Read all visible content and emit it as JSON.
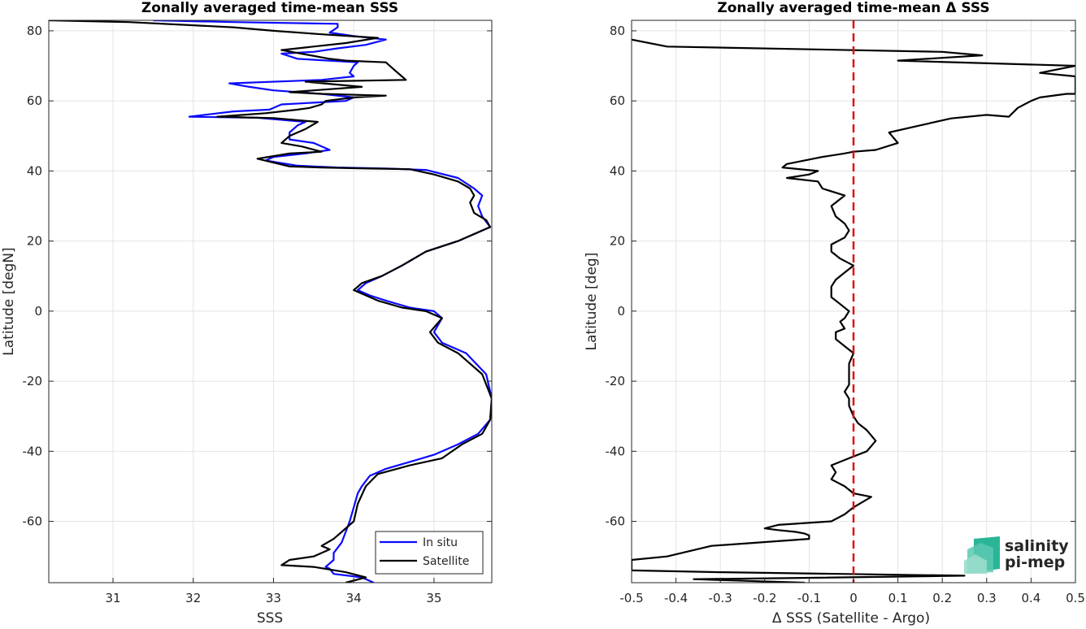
{
  "charts": [
    {
      "id": "left",
      "title": "Zonally averaged time-mean SSS",
      "xlabel": "SSS",
      "ylabel": "Latitude [degN]",
      "xticks": [
        31,
        32,
        33,
        34,
        35
      ],
      "xticklabels": [
        "31",
        "32",
        "33",
        "34",
        "35"
      ],
      "yticks": [
        -60,
        -40,
        -20,
        0,
        20,
        40,
        60,
        80
      ],
      "yticklabels": [
        "-60",
        "-40",
        "-20",
        "0",
        "20",
        "40",
        "60",
        "80"
      ],
      "legend": [
        "In situ",
        "Satellite"
      ]
    },
    {
      "id": "right",
      "title": "Zonally averaged time-mean Δ SSS",
      "xlabel": "Δ SSS (Satellite - Argo)",
      "ylabel": "Latitude [deg]",
      "xticks": [
        -0.5,
        -0.4,
        -0.3,
        -0.2,
        -0.1,
        0,
        0.1,
        0.2,
        0.3,
        0.4,
        0.5
      ],
      "xticklabels": [
        "-0.5",
        "-0.4",
        "-0.3",
        "-0.2",
        "-0.1",
        "0",
        "0.1",
        "0.2",
        "0.3",
        "0.4",
        "0.5"
      ],
      "yticks": [
        -60,
        -40,
        -20,
        0,
        20,
        40,
        60,
        80
      ],
      "yticklabels": [
        "-60",
        "-40",
        "-20",
        "0",
        "20",
        "40",
        "60",
        "80"
      ]
    }
  ],
  "logo": {
    "line1": "salinity",
    "line2": "pi-mep",
    "color": "#1aa68c"
  },
  "colors": {
    "insitu": "#0a0aff",
    "satellite": "#000000",
    "zero_line": "#dd1111"
  },
  "chart_data": [
    {
      "type": "line",
      "title": "Zonally averaged time-mean SSS",
      "xlabel": "SSS",
      "ylabel": "Latitude [degN]",
      "xlim": [
        30.2,
        35.72
      ],
      "ylim": [
        -77.5,
        83
      ],
      "grid": true,
      "legend_position": "bottom-right",
      "series": [
        {
          "name": "In situ",
          "color": "#0a0aff",
          "points": [
            [
              34.25,
              -77.5
            ],
            [
              34.1,
              -76
            ],
            [
              33.75,
              -75
            ],
            [
              33.7,
              -73.5
            ],
            [
              33.65,
              -73
            ],
            [
              33.75,
              -71
            ],
            [
              33.75,
              -69
            ],
            [
              33.85,
              -66
            ],
            [
              33.9,
              -63
            ],
            [
              33.95,
              -60
            ],
            [
              34.0,
              -56
            ],
            [
              34.05,
              -52
            ],
            [
              34.1,
              -50
            ],
            [
              34.2,
              -47
            ],
            [
              34.4,
              -45
            ],
            [
              34.7,
              -43
            ],
            [
              35.0,
              -41
            ],
            [
              35.3,
              -38
            ],
            [
              35.55,
              -35
            ],
            [
              35.7,
              -31
            ],
            [
              35.72,
              -25
            ],
            [
              35.65,
              -18
            ],
            [
              35.4,
              -12
            ],
            [
              35.1,
              -9
            ],
            [
              35.0,
              -6
            ],
            [
              35.1,
              -2
            ],
            [
              35.0,
              0
            ],
            [
              34.7,
              1
            ],
            [
              34.4,
              3
            ],
            [
              34.2,
              4.5
            ],
            [
              34.05,
              6
            ],
            [
              34.15,
              8
            ],
            [
              34.35,
              10
            ],
            [
              34.6,
              13
            ],
            [
              34.9,
              17
            ],
            [
              35.3,
              20
            ],
            [
              35.7,
              24
            ],
            [
              35.6,
              27
            ],
            [
              35.55,
              30
            ],
            [
              35.6,
              33
            ],
            [
              35.5,
              35
            ],
            [
              35.3,
              38
            ],
            [
              34.9,
              40.3
            ],
            [
              34.4,
              40.7
            ],
            [
              33.8,
              41
            ],
            [
              33.3,
              41.5
            ],
            [
              32.9,
              43
            ],
            [
              33.0,
              44
            ],
            [
              33.4,
              45
            ],
            [
              33.7,
              46
            ],
            [
              33.5,
              48
            ],
            [
              33.2,
              49
            ],
            [
              33.2,
              51
            ],
            [
              33.3,
              53
            ],
            [
              33.4,
              54
            ],
            [
              32.8,
              55.2
            ],
            [
              31.95,
              55.5
            ],
            [
              32.5,
              57
            ],
            [
              32.95,
              57.5
            ],
            [
              33.1,
              59
            ],
            [
              33.9,
              60
            ],
            [
              34.0,
              61
            ],
            [
              33.6,
              62
            ],
            [
              33.0,
              63
            ],
            [
              32.7,
              64
            ],
            [
              32.45,
              65
            ],
            [
              33.6,
              66
            ],
            [
              34.0,
              67
            ],
            [
              33.95,
              68
            ],
            [
              34.0,
              70
            ],
            [
              34.05,
              71
            ],
            [
              33.3,
              72
            ],
            [
              33.1,
              73.5
            ],
            [
              33.5,
              74
            ],
            [
              33.8,
              75
            ],
            [
              34.15,
              76
            ],
            [
              34.4,
              77.5
            ],
            [
              34.0,
              78.5
            ],
            [
              33.7,
              79.5
            ],
            [
              33.8,
              81
            ],
            [
              33.8,
              82
            ],
            [
              32.5,
              82.5
            ],
            [
              31.5,
              83
            ]
          ]
        },
        {
          "name": "Satellite",
          "color": "#000000",
          "points": [
            [
              33.9,
              -77.5
            ],
            [
              34.15,
              -76
            ],
            [
              33.9,
              -74.5
            ],
            [
              33.5,
              -73
            ],
            [
              33.1,
              -72.5
            ],
            [
              33.2,
              -71
            ],
            [
              33.5,
              -70
            ],
            [
              33.7,
              -68
            ],
            [
              33.6,
              -67
            ],
            [
              33.75,
              -65
            ],
            [
              33.85,
              -63
            ],
            [
              34.0,
              -60
            ],
            [
              34.05,
              -55
            ],
            [
              34.15,
              -50
            ],
            [
              34.3,
              -46.5
            ],
            [
              34.7,
              -44
            ],
            [
              35.1,
              -42
            ],
            [
              35.35,
              -38
            ],
            [
              35.6,
              -35
            ],
            [
              35.7,
              -31
            ],
            [
              35.72,
              -25
            ],
            [
              35.6,
              -18
            ],
            [
              35.3,
              -12
            ],
            [
              35.05,
              -9
            ],
            [
              34.95,
              -6
            ],
            [
              35.1,
              -2
            ],
            [
              34.9,
              0
            ],
            [
              34.6,
              1
            ],
            [
              34.3,
              3
            ],
            [
              34.0,
              6
            ],
            [
              34.1,
              8
            ],
            [
              34.35,
              10
            ],
            [
              34.6,
              13
            ],
            [
              34.9,
              17
            ],
            [
              35.3,
              20
            ],
            [
              35.7,
              24
            ],
            [
              35.65,
              26
            ],
            [
              35.5,
              28
            ],
            [
              35.45,
              31
            ],
            [
              35.5,
              33
            ],
            [
              35.45,
              35
            ],
            [
              35.3,
              37
            ],
            [
              35.0,
              39
            ],
            [
              34.7,
              40.5
            ],
            [
              34.2,
              40.7
            ],
            [
              33.6,
              41
            ],
            [
              33.2,
              41.3
            ],
            [
              32.8,
              43.5
            ],
            [
              33.2,
              45
            ],
            [
              33.6,
              45.5
            ],
            [
              33.35,
              47
            ],
            [
              33.1,
              48
            ],
            [
              33.2,
              50
            ],
            [
              33.4,
              52
            ],
            [
              33.55,
              54
            ],
            [
              33.0,
              55.1
            ],
            [
              32.3,
              55.5
            ],
            [
              32.9,
              56.5
            ],
            [
              33.3,
              57.5
            ],
            [
              33.45,
              58
            ],
            [
              33.6,
              59
            ],
            [
              33.65,
              60
            ],
            [
              34.0,
              61
            ],
            [
              34.4,
              61.5
            ],
            [
              33.6,
              62
            ],
            [
              33.2,
              62.5
            ],
            [
              33.5,
              63
            ],
            [
              34.1,
              64
            ],
            [
              33.4,
              65.5
            ],
            [
              34.65,
              66
            ],
            [
              34.6,
              67
            ],
            [
              34.5,
              69
            ],
            [
              34.4,
              71
            ],
            [
              33.9,
              71.5
            ],
            [
              33.7,
              72
            ],
            [
              33.1,
              74.5
            ],
            [
              33.9,
              76.5
            ],
            [
              34.3,
              78
            ],
            [
              33.6,
              79
            ],
            [
              33.0,
              80
            ],
            [
              32.5,
              81
            ],
            [
              31.2,
              82.5
            ],
            [
              30.2,
              83
            ]
          ]
        }
      ]
    },
    {
      "type": "line",
      "title": "Zonally averaged time-mean Δ SSS",
      "xlabel": "Δ SSS (Satellite - Argo)",
      "ylabel": "Latitude [deg]",
      "xlim": [
        -0.5,
        0.5
      ],
      "ylim": [
        -77.5,
        83
      ],
      "grid": true,
      "zero_line": {
        "x": 0,
        "color": "#dd1111",
        "style": "dashed"
      },
      "series": [
        {
          "name": "",
          "color": "#000000",
          "points": [
            [
              -0.11,
              -77.5
            ],
            [
              -0.36,
              -76.5
            ],
            [
              -0.15,
              -76.2
            ],
            [
              0.25,
              -75.5
            ],
            [
              -0.3,
              -74.5
            ],
            [
              -0.5,
              -74
            ],
            [
              -0.5,
              -71
            ],
            [
              -0.42,
              -70
            ],
            [
              -0.32,
              -67
            ],
            [
              -0.1,
              -65
            ],
            [
              -0.1,
              -64
            ],
            [
              -0.11,
              -63.5
            ],
            [
              -0.13,
              -63
            ],
            [
              -0.17,
              -62.5
            ],
            [
              -0.2,
              -62
            ],
            [
              -0.17,
              -61
            ],
            [
              -0.05,
              -60
            ],
            [
              -0.02,
              -58
            ],
            [
              0.0,
              -56
            ],
            [
              0.04,
              -53
            ],
            [
              0.0,
              -52
            ],
            [
              -0.02,
              -50
            ],
            [
              -0.05,
              -48
            ],
            [
              -0.04,
              -46
            ],
            [
              -0.05,
              -44
            ],
            [
              -0.01,
              -42
            ],
            [
              0.03,
              -40
            ],
            [
              0.05,
              -37
            ],
            [
              0.03,
              -34
            ],
            [
              0.01,
              -32
            ],
            [
              0.0,
              -30
            ],
            [
              -0.01,
              -27
            ],
            [
              -0.01,
              -25
            ],
            [
              -0.02,
              -23
            ],
            [
              -0.01,
              -21
            ],
            [
              -0.01,
              -18
            ],
            [
              -0.01,
              -15
            ],
            [
              0.0,
              -12
            ],
            [
              -0.02,
              -10
            ],
            [
              -0.04,
              -8
            ],
            [
              -0.04,
              -6
            ],
            [
              -0.02,
              -5
            ],
            [
              -0.03,
              -3
            ],
            [
              -0.02,
              -2
            ],
            [
              -0.01,
              0
            ],
            [
              -0.03,
              2
            ],
            [
              -0.05,
              4
            ],
            [
              -0.05,
              7
            ],
            [
              -0.04,
              9
            ],
            [
              -0.02,
              11
            ],
            [
              0.0,
              13
            ],
            [
              -0.03,
              15
            ],
            [
              -0.05,
              17
            ],
            [
              -0.05,
              19
            ],
            [
              -0.02,
              21
            ],
            [
              -0.01,
              23
            ],
            [
              -0.02,
              25
            ],
            [
              -0.04,
              27
            ],
            [
              -0.05,
              30
            ],
            [
              -0.02,
              33
            ],
            [
              -0.07,
              35
            ],
            [
              -0.08,
              37
            ],
            [
              -0.15,
              38
            ],
            [
              -0.1,
              39
            ],
            [
              -0.08,
              40
            ],
            [
              -0.16,
              41
            ],
            [
              -0.15,
              42
            ],
            [
              -0.07,
              44
            ],
            [
              -0.02,
              45
            ],
            [
              0.0,
              45.5
            ],
            [
              0.05,
              46
            ],
            [
              0.1,
              48
            ],
            [
              0.08,
              51
            ],
            [
              0.15,
              53
            ],
            [
              0.22,
              55
            ],
            [
              0.3,
              56
            ],
            [
              0.35,
              55.5
            ],
            [
              0.37,
              58
            ],
            [
              0.4,
              60
            ],
            [
              0.42,
              61
            ],
            [
              0.48,
              62
            ],
            [
              0.5,
              62
            ],
            [
              0.5,
              67
            ],
            [
              0.42,
              68
            ],
            [
              0.5,
              70
            ],
            [
              0.1,
              71.5
            ],
            [
              0.29,
              73
            ],
            [
              0.2,
              74
            ],
            [
              -0.42,
              75.5
            ],
            [
              -0.5,
              77.5
            ]
          ]
        }
      ]
    }
  ]
}
